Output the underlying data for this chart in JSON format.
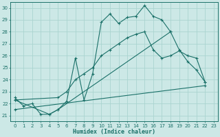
{
  "xlabel": "Humidex (Indice chaleur)",
  "background_color": "#cce8e6",
  "grid_color": "#aad4d0",
  "line_color": "#1a7068",
  "xlim": [
    -0.5,
    23.5
  ],
  "ylim": [
    20.5,
    30.5
  ],
  "xticks": [
    0,
    1,
    2,
    3,
    4,
    5,
    6,
    7,
    8,
    9,
    10,
    11,
    12,
    13,
    14,
    15,
    16,
    17,
    18,
    19,
    20,
    21,
    22,
    23
  ],
  "yticks": [
    21,
    22,
    23,
    24,
    25,
    26,
    27,
    28,
    29,
    30
  ],
  "line1_x": [
    0,
    1,
    2,
    3,
    4,
    5,
    6,
    7,
    8,
    9,
    10,
    11,
    12,
    13,
    14,
    15,
    16,
    17,
    18
  ],
  "line1_y": [
    22.5,
    21.8,
    22.0,
    21.1,
    21.1,
    21.5,
    22.2,
    25.8,
    22.3,
    24.5,
    28.8,
    29.5,
    28.7,
    29.2,
    29.3,
    30.2,
    29.3,
    29.0,
    28.0
  ],
  "line2_x": [
    0,
    5,
    6,
    7,
    8,
    9,
    10,
    11,
    12,
    13,
    14,
    15,
    16,
    17,
    18,
    19,
    20,
    21,
    22
  ],
  "line2_y": [
    22.3,
    22.5,
    23.0,
    24.0,
    24.5,
    25.0,
    26.0,
    26.5,
    27.0,
    27.5,
    27.8,
    28.0,
    26.5,
    25.8,
    26.0,
    26.4,
    26.0,
    25.8,
    23.8
  ],
  "line3_x": [
    0,
    22
  ],
  "line3_y": [
    21.5,
    23.5
  ],
  "line4_x": [
    0,
    4,
    5,
    18,
    19,
    20,
    21,
    22
  ],
  "line4_y": [
    22.3,
    21.1,
    21.5,
    28.0,
    26.5,
    25.5,
    24.8,
    23.8
  ]
}
